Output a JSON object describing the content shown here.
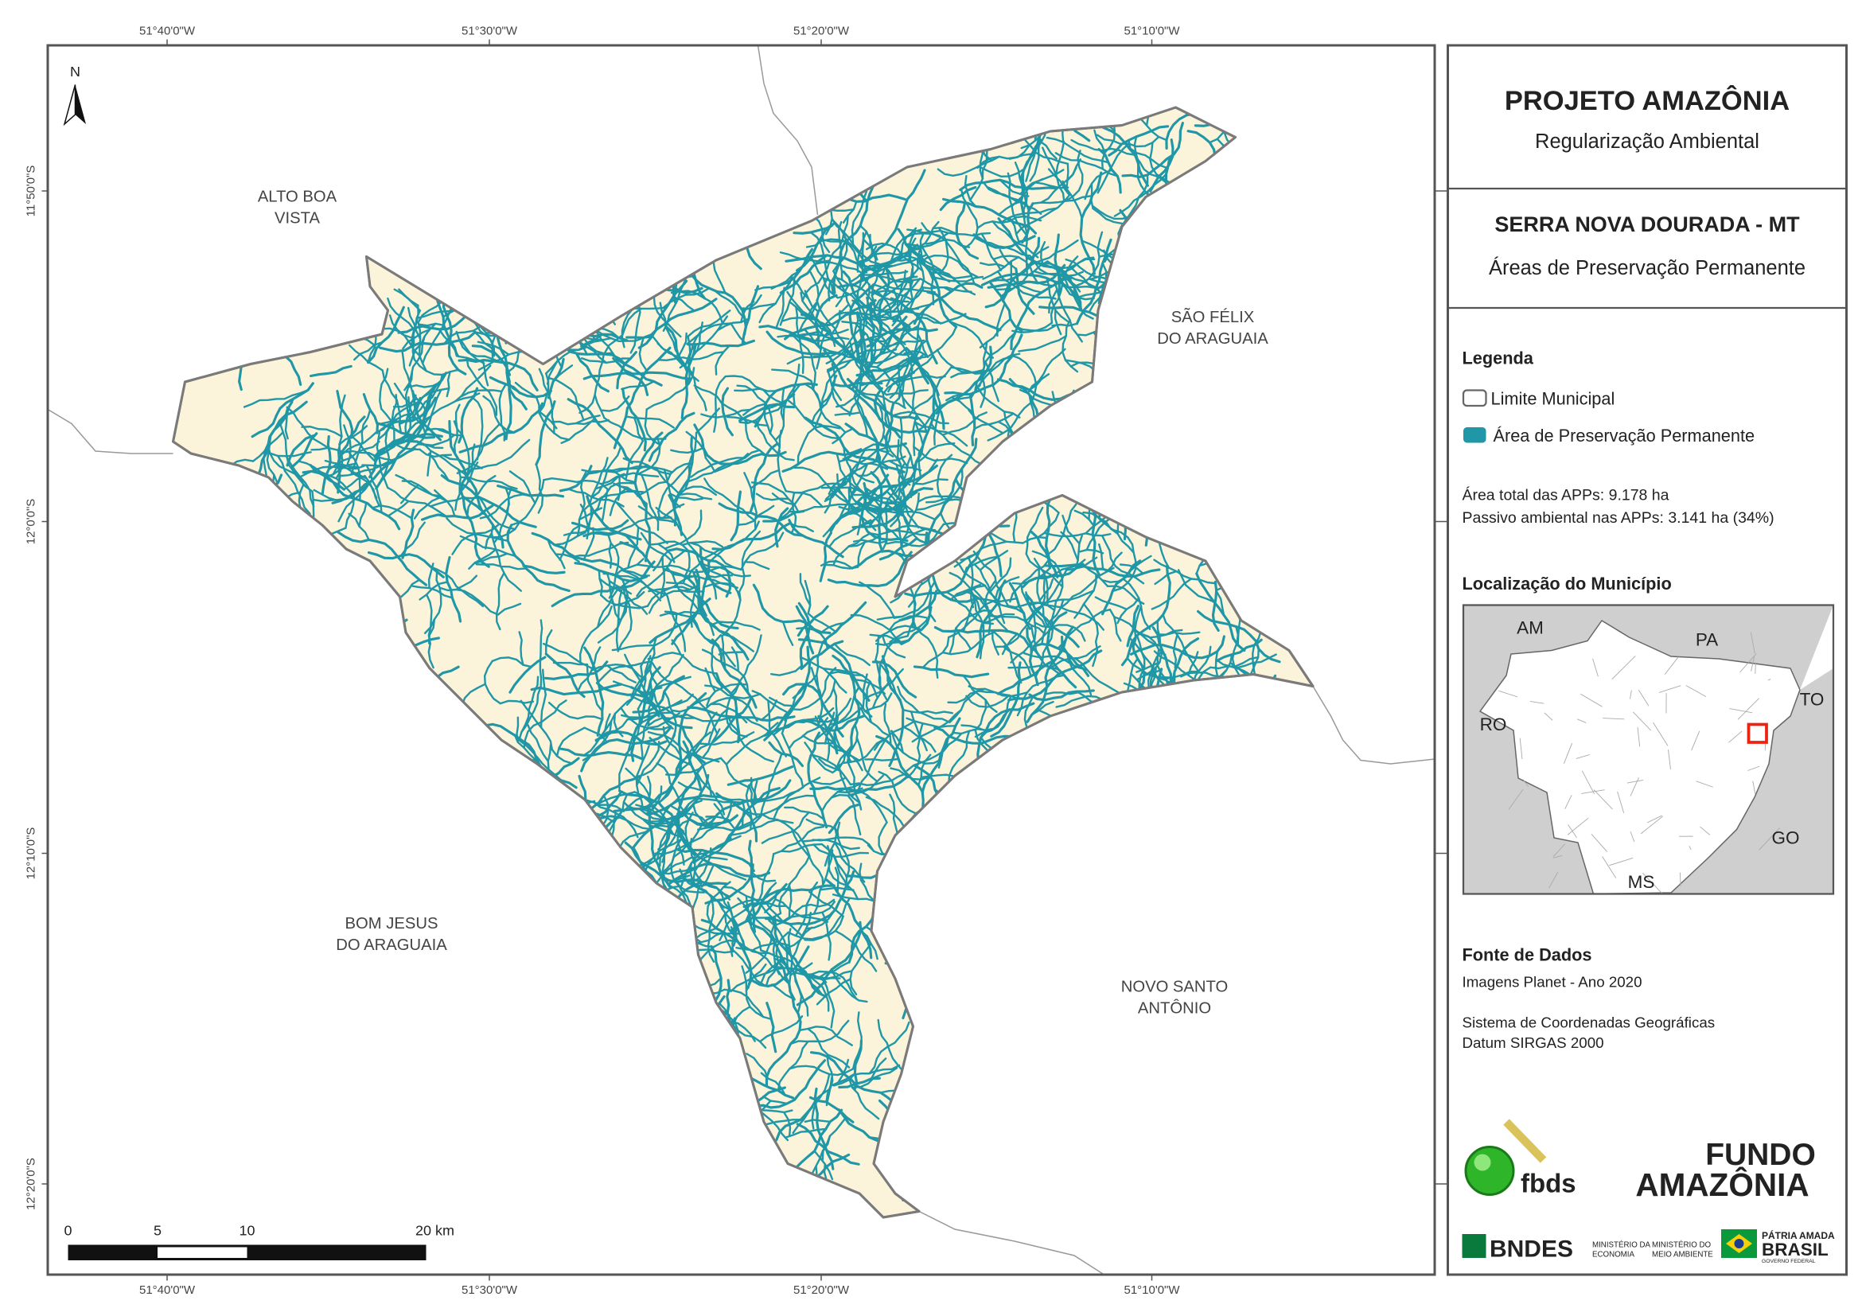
{
  "header": {
    "title": "PROJETO AMAZÔNIA",
    "subtitle": "Regularização Ambiental"
  },
  "map_info": {
    "municipality": "SERRA NOVA DOURADA - MT",
    "theme": "Áreas de Preservação Permanente"
  },
  "legend": {
    "title": "Legenda",
    "items": [
      "Limite Municipal",
      "Área de Preservação Permanente"
    ],
    "stats": [
      "Área total das APPs: 9.178 ha",
      "Passivo ambiental nas APPs: 3.141 ha (34%)"
    ]
  },
  "location": {
    "title": "Localização do Município",
    "states": [
      "AM",
      "PA",
      "TO",
      "RO",
      "GO",
      "MS"
    ]
  },
  "sources": {
    "title": "Fonte de Dados",
    "lines": [
      "Imagens Planet - Ano 2020",
      "Sistema de Coordenadas Geográficas",
      "Datum SIRGAS 2000"
    ]
  },
  "logos": {
    "fbds": "fbds",
    "fundo": [
      "FUNDO",
      "AMAZÔNIA"
    ],
    "bndes": "BNDES",
    "ministries": [
      [
        "MINISTÉRIO DA",
        "ECONOMIA"
      ],
      [
        "MINISTÉRIO DO",
        "MEIO AMBIENTE"
      ]
    ],
    "government": [
      "PÁTRIA AMADA",
      "BRASIL",
      "GOVERNO FEDERAL"
    ]
  },
  "map": {
    "north": "N",
    "neighbors": [
      [
        "ALTO BOA",
        "VISTA"
      ],
      [
        "SÃO FÉLIX",
        "DO ARAGUAIA"
      ],
      [
        "BOM JESUS",
        "DO ARAGUAIA"
      ],
      [
        "NOVO SANTO",
        "ANTÔNIO"
      ]
    ],
    "longitudes": [
      "51°40'0\"W",
      "51°30'0\"W",
      "51°20'0\"W",
      "51°10'0\"W"
    ],
    "latitudes": [
      "11°50'0\"S",
      "12°0'0\"S",
      "12°10'0\"S",
      "12°20'0\"S"
    ],
    "scale_bar": [
      "0",
      "5",
      "10",
      "20 km"
    ]
  }
}
